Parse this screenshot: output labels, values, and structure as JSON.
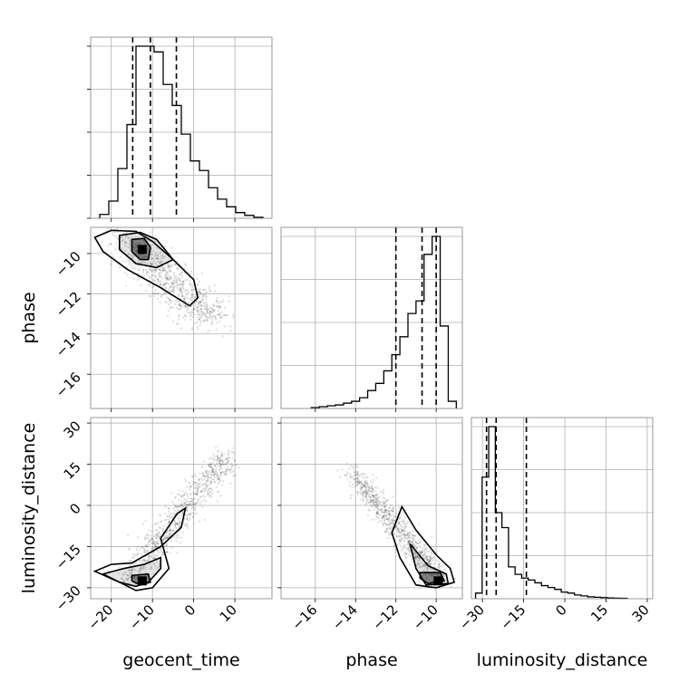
{
  "chart_data": {
    "type": "corner",
    "parameters": [
      "geocent_time",
      "phase",
      "luminosity_distance"
    ],
    "axes": {
      "geocent_time": {
        "range": [
          -25,
          19
        ],
        "ticks": [
          -20,
          -10,
          0,
          10
        ],
        "tick_labels": [
          "−20",
          "−10",
          "0",
          "10"
        ],
        "quantiles": [
          -14.8,
          -10.5,
          -4.2
        ]
      },
      "phase": {
        "range": [
          -17.7,
          -8.7
        ],
        "ticks": [
          -16,
          -14,
          -12,
          -10
        ],
        "tick_labels": [
          "−16",
          "−14",
          "−12",
          "−10"
        ],
        "quantiles": [
          -12.0,
          -10.7,
          -10.0
        ]
      },
      "luminosity_distance": {
        "range": [
          -34,
          32
        ],
        "ticks": [
          -30,
          -15,
          0,
          15,
          30
        ],
        "tick_labels": [
          "−30",
          "−15",
          "0",
          "15",
          "30"
        ],
        "quantiles": [
          -28.5,
          -25.0,
          -14.0
        ]
      }
    },
    "histograms": {
      "geocent_time": {
        "bin_edges": [
          -22.8,
          -20.6,
          -18.4,
          -16.2,
          -14.0,
          -11.8,
          -9.6,
          -7.4,
          -5.2,
          -3.0,
          -0.8,
          1.4,
          3.6,
          5.8,
          8.0,
          10.2,
          12.4,
          14.6,
          16.8
        ],
        "counts": [
          0.02,
          0.09,
          0.26,
          0.49,
          0.9,
          0.9,
          0.87,
          0.7,
          0.59,
          0.44,
          0.3,
          0.25,
          0.16,
          0.1,
          0.06,
          0.03,
          0.015,
          0.005
        ]
      },
      "phase": {
        "bin_edges": [
          -16.2,
          -15.8,
          -15.4,
          -15.0,
          -14.6,
          -14.2,
          -13.8,
          -13.4,
          -13.0,
          -12.6,
          -12.2,
          -11.8,
          -11.4,
          -11.0,
          -10.6,
          -10.2,
          -9.8,
          -9.4,
          -9.0
        ],
        "counts": [
          0.005,
          0.01,
          0.015,
          0.02,
          0.03,
          0.04,
          0.06,
          0.1,
          0.14,
          0.21,
          0.3,
          0.4,
          0.53,
          0.6,
          0.86,
          0.96,
          0.46,
          0.04
        ]
      },
      "luminosity_distance": {
        "bin_edges": [
          -32.5,
          -30.1,
          -27.7,
          -25.3,
          -22.9,
          -20.5,
          -18.1,
          -15.7,
          -13.3,
          -10.9,
          -8.5,
          -6.1,
          -3.7,
          -1.3,
          1.1,
          3.5,
          5.9,
          8.3,
          10.7,
          13.1,
          15.5,
          17.9,
          20.3,
          22.7
        ],
        "counts": [
          0.03,
          0.65,
          0.92,
          0.46,
          0.38,
          0.17,
          0.13,
          0.11,
          0.1,
          0.085,
          0.07,
          0.06,
          0.05,
          0.035,
          0.03,
          0.02,
          0.015,
          0.01,
          0.008,
          0.006,
          0.004,
          0.003,
          0.002
        ]
      }
    },
    "pairs": [
      {
        "x": "geocent_time",
        "y": "phase",
        "mode": [
          -12.5,
          -9.8
        ],
        "contours": [
          [
            [
              -24,
              -9.2
            ],
            [
              -20,
              -8.85
            ],
            [
              -14,
              -8.9
            ],
            [
              -10,
              -9.4
            ],
            [
              -5,
              -10.3
            ],
            [
              0,
              -11.3
            ],
            [
              1,
              -12.2
            ],
            [
              -1,
              -12.6
            ],
            [
              -8,
              -11.7
            ],
            [
              -16,
              -10.8
            ],
            [
              -22,
              -9.9
            ],
            [
              -24,
              -9.2
            ]
          ],
          [
            [
              -18,
              -9.1
            ],
            [
              -13,
              -8.95
            ],
            [
              -9,
              -9.3
            ],
            [
              -5,
              -10.3
            ],
            [
              -9,
              -10.7
            ],
            [
              -14,
              -10.5
            ],
            [
              -18,
              -9.8
            ],
            [
              -18,
              -9.1
            ]
          ],
          [
            [
              -15,
              -9.3
            ],
            [
              -12,
              -9.25
            ],
            [
              -10.5,
              -9.7
            ],
            [
              -11,
              -10.3
            ],
            [
              -13,
              -10.3
            ],
            [
              -15,
              -9.9
            ],
            [
              -15,
              -9.3
            ]
          ]
        ],
        "scatter_core": {
          "line_start": [
            -18,
            -9.0
          ],
          "line_end": [
            4,
            -13.2
          ],
          "spread": [
            5.5,
            0.7
          ],
          "count": 900
        }
      },
      {
        "x": "geocent_time",
        "y": "luminosity_distance",
        "mode": [
          -12.5,
          -27.5
        ],
        "contours": [
          [
            [
              -24,
              -24
            ],
            [
              -20,
              -21.5
            ],
            [
              -15,
              -21
            ],
            [
              -8,
              -15
            ],
            [
              -3,
              -8
            ],
            [
              -2,
              -1
            ],
            [
              -4,
              -3
            ],
            [
              -8,
              -12
            ],
            [
              -6,
              -23
            ],
            [
              -10,
              -30
            ],
            [
              -14,
              -31
            ],
            [
              -18,
              -28
            ],
            [
              -24,
              -24
            ]
          ],
          [
            [
              -22,
              -25
            ],
            [
              -17,
              -23
            ],
            [
              -12,
              -21.5
            ],
            [
              -8,
              -19
            ],
            [
              -8,
              -23
            ],
            [
              -11,
              -28
            ],
            [
              -14,
              -29.5
            ],
            [
              -18,
              -28
            ],
            [
              -22,
              -25
            ]
          ],
          [
            [
              -15,
              -25.5
            ],
            [
              -11,
              -25
            ],
            [
              -10.5,
              -28
            ],
            [
              -13,
              -29
            ],
            [
              -15,
              -27.5
            ],
            [
              -15,
              -25.5
            ]
          ]
        ],
        "scatter_core": {
          "line_start": [
            -16,
            -28
          ],
          "line_end": [
            8,
            18
          ],
          "spread": [
            3.5,
            4.0
          ],
          "count": 900
        }
      },
      {
        "x": "phase",
        "y": "luminosity_distance",
        "mode": [
          -9.9,
          -27.5
        ],
        "contours": [
          [
            [
              -11.7,
              -0.5
            ],
            [
              -11,
              -9
            ],
            [
              -10,
              -18
            ],
            [
              -9.3,
              -23
            ],
            [
              -9.1,
              -28
            ],
            [
              -10,
              -30
            ],
            [
              -11,
              -29
            ],
            [
              -11.8,
              -19
            ],
            [
              -12.2,
              -10
            ],
            [
              -11.7,
              -0.5
            ]
          ],
          [
            [
              -11.3,
              -14
            ],
            [
              -10.4,
              -22
            ],
            [
              -9.5,
              -25
            ],
            [
              -9.4,
              -28.5
            ],
            [
              -10.5,
              -29
            ],
            [
              -11,
              -23
            ],
            [
              -11.3,
              -14
            ]
          ],
          [
            [
              -10.8,
              -24.5
            ],
            [
              -9.8,
              -24.5
            ],
            [
              -9.6,
              -27.5
            ],
            [
              -10.4,
              -28.5
            ],
            [
              -10.8,
              -26.5
            ],
            [
              -10.8,
              -24.5
            ]
          ]
        ],
        "scatter_core": {
          "line_start": [
            -14.2,
            12
          ],
          "line_end": [
            -9.8,
            -27
          ],
          "spread": [
            0.5,
            4.0
          ],
          "count": 900
        }
      }
    ],
    "colors": {
      "line": "#000000",
      "scatter": "#000000",
      "grid": "#b0b0b0",
      "frame": "#808080"
    }
  }
}
